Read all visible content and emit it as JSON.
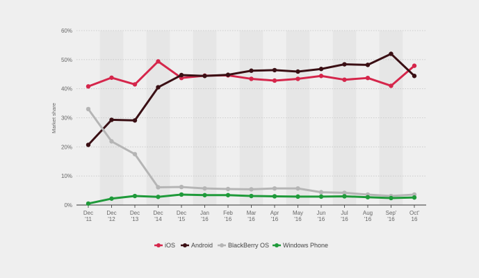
{
  "chart_data": {
    "type": "line",
    "ylabel": "Market share",
    "y_ticks": [
      "0%",
      "10%",
      "20%",
      "30%",
      "40%",
      "50%",
      "60%"
    ],
    "ylim": [
      0,
      60
    ],
    "x_labels": [
      [
        "Dec",
        "'11"
      ],
      [
        "Dec",
        "'12"
      ],
      [
        "Dec",
        "'13"
      ],
      [
        "Dec",
        "'14"
      ],
      [
        "Dec",
        "'15"
      ],
      [
        "Jan",
        "'16"
      ],
      [
        "Feb",
        "'16"
      ],
      [
        "Mar",
        "'16"
      ],
      [
        "Apr",
        "'16"
      ],
      [
        "May",
        "'16"
      ],
      [
        "Jun",
        "'16"
      ],
      [
        "Jul",
        "'16"
      ],
      [
        "Aug",
        "'16"
      ],
      [
        "Sep'",
        "'16"
      ],
      [
        "Oct'",
        "16"
      ]
    ],
    "grid": "horizontal dotted, alternating shaded columns",
    "legend_position": "bottom",
    "series": [
      {
        "name": "iOS",
        "color": "#d5264b",
        "values": [
          40.8,
          43.8,
          41.5,
          49.4,
          43.7,
          44.5,
          44.6,
          43.4,
          42.8,
          43.4,
          44.4,
          43.1,
          43.7,
          41.0,
          47.9
        ]
      },
      {
        "name": "Android",
        "color": "#3a0f14",
        "values": [
          20.7,
          29.3,
          29.1,
          40.5,
          44.7,
          44.4,
          44.8,
          46.2,
          46.4,
          45.9,
          46.8,
          48.4,
          48.2,
          52.0,
          44.4
        ]
      },
      {
        "name": "BlackBerry OS",
        "color": "#b5b5b5",
        "values": [
          33.0,
          21.9,
          17.5,
          6.1,
          6.2,
          5.7,
          5.5,
          5.4,
          5.7,
          5.7,
          4.4,
          4.2,
          3.6,
          3.1,
          3.6
        ]
      },
      {
        "name": "Windows Phone",
        "color": "#1f9a3a",
        "values": [
          0.5,
          2.2,
          3.1,
          2.8,
          3.6,
          3.4,
          3.4,
          3.1,
          3.0,
          2.9,
          2.9,
          3.0,
          2.7,
          2.4,
          2.6
        ]
      }
    ]
  }
}
